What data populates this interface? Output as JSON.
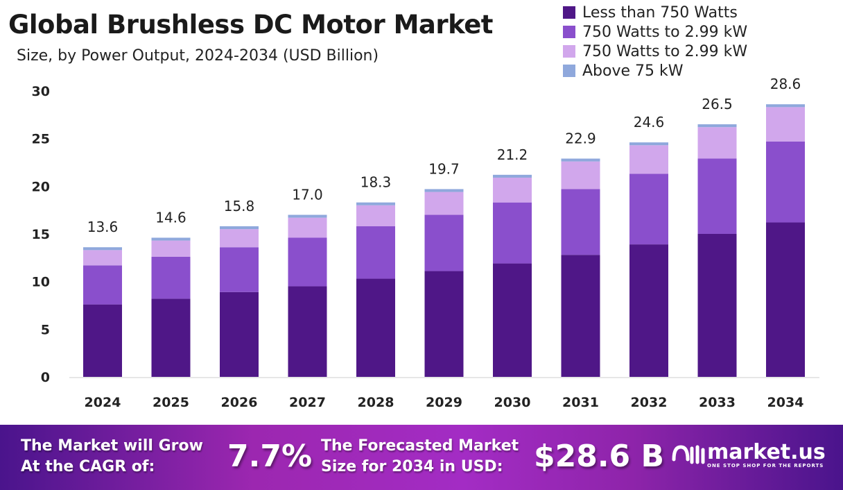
{
  "chart_data": {
    "type": "bar",
    "stacked": true,
    "title": "Global Brushless DC Motor Market",
    "subtitle": "Size, by Power Output, 2024-2034 (USD Billion)",
    "xlabel": "",
    "ylabel": "",
    "ylim": [
      0,
      30
    ],
    "yticks": [
      0,
      5,
      10,
      15,
      20,
      25,
      30
    ],
    "grid": false,
    "legend_position": "top-right",
    "categories": [
      "2024",
      "2025",
      "2026",
      "2027",
      "2028",
      "2029",
      "2030",
      "2031",
      "2032",
      "2033",
      "2034"
    ],
    "totals": [
      "13.6",
      "14.6",
      "15.8",
      "17.0",
      "18.3",
      "19.7",
      "21.2",
      "22.9",
      "24.6",
      "26.5",
      "28.6"
    ],
    "series": [
      {
        "name": "Less than 750 Watts",
        "color": "#4f1787",
        "values": [
          7.6,
          8.2,
          8.9,
          9.5,
          10.3,
          11.1,
          11.9,
          12.8,
          13.9,
          15.0,
          16.2
        ]
      },
      {
        "name": "750 Watts to 2.99 kW",
        "color": "#8a4fcc",
        "values": [
          4.1,
          4.4,
          4.7,
          5.1,
          5.5,
          5.9,
          6.4,
          6.9,
          7.4,
          7.9,
          8.5
        ]
      },
      {
        "name": "750 Watts to 2.99 kW",
        "color": "#d1a7ec",
        "values": [
          1.6,
          1.7,
          1.9,
          2.1,
          2.2,
          2.4,
          2.6,
          2.9,
          3.0,
          3.3,
          3.6
        ]
      },
      {
        "name": "Above 75 kW",
        "color": "#8fa8dc",
        "values": [
          0.3,
          0.3,
          0.3,
          0.3,
          0.3,
          0.3,
          0.3,
          0.3,
          0.3,
          0.3,
          0.3
        ]
      }
    ]
  },
  "banner": {
    "cagr_label_1": "The Market will Grow",
    "cagr_label_2": "At the CAGR of:",
    "cagr_value": "7.7%",
    "forecast_label_1": "The Forecasted Market",
    "forecast_label_2": "Size for 2034 in USD:",
    "forecast_value": "$28.6 B",
    "logo_text": "market.us",
    "logo_tagline": "ONE STOP SHOP FOR THE REPORTS"
  }
}
